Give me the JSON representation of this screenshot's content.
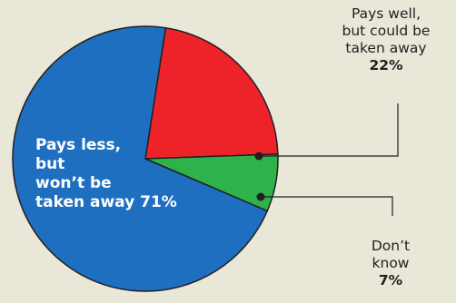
{
  "colors": {
    "background": "#e9e7d8",
    "slice_less": "#1f6fc0",
    "slice_well": "#ee2329",
    "slice_dont_know": "#2db34a",
    "outline": "#231f20",
    "leader": "#231f20"
  },
  "chart_data": {
    "type": "pie",
    "slices": [
      {
        "label": "Pays less, but won’t be taken away",
        "value": 71
      },
      {
        "label": "Pays well, but could be taken away",
        "value": 22
      },
      {
        "label": "Don’t know",
        "value": 7
      }
    ]
  },
  "labels": {
    "less": {
      "lines": [
        "Pays less,",
        "but",
        "won’t be",
        "taken away 71%"
      ]
    },
    "well": {
      "lines": [
        "Pays well,",
        "but could be",
        "taken away"
      ],
      "pct": "22%"
    },
    "dont_know": {
      "lines": [
        "Don’t",
        "know"
      ],
      "pct": "7%"
    }
  }
}
